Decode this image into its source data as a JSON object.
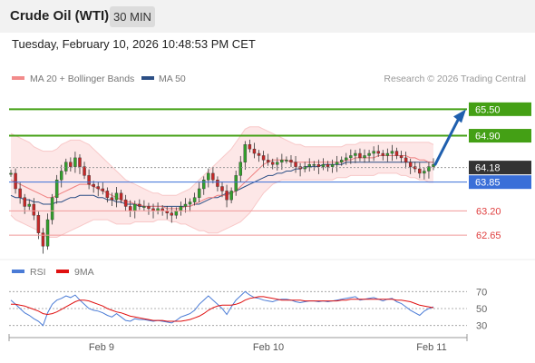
{
  "header": {
    "title": "Crude Oil (WTI)",
    "timeframe": "30 MIN"
  },
  "datetime": "Tuesday, February 10, 2026 10:48:53 PM CET",
  "colors": {
    "resistance": "#44a015",
    "pivot": "#3a6fd8",
    "support": "#e04040",
    "current": "#333333",
    "arrow": "#1f5fae",
    "ma20": "#f08080",
    "ma50": "#2c4f85",
    "rsi": "#4a7bd6",
    "rsi_ma": "#e01010"
  },
  "legend": {
    "ma20": "MA 20 + Bollinger Bands",
    "ma50": "MA 50",
    "copyright": "Research © 2026 Trading Central"
  },
  "rsi_legend": {
    "rsi": "RSI",
    "ma": "9MA"
  },
  "chart_data": {
    "type": "candlestick",
    "price_ylim": [
      62.2,
      66.0
    ],
    "levels": [
      {
        "value": 65.5,
        "label": "65.50",
        "kind": "resistance"
      },
      {
        "value": 64.9,
        "label": "64.90",
        "kind": "resistance"
      },
      {
        "value": 64.18,
        "label": "64.18",
        "kind": "current"
      },
      {
        "value": 63.85,
        "label": "63.85",
        "kind": "pivot"
      },
      {
        "value": 63.2,
        "label": "63.20",
        "kind": "support"
      },
      {
        "value": 62.65,
        "label": "62.65",
        "kind": "support"
      }
    ],
    "x_ticks": [
      "Feb 9",
      "Feb 10",
      "Feb 11"
    ],
    "close": [
      64.05,
      63.7,
      63.5,
      63.3,
      63.35,
      63.1,
      62.7,
      62.4,
      63.0,
      63.5,
      63.9,
      64.1,
      64.3,
      64.2,
      64.4,
      64.2,
      64.0,
      63.8,
      63.75,
      63.7,
      63.65,
      63.5,
      63.45,
      63.6,
      63.45,
      63.3,
      63.2,
      63.35,
      63.3,
      63.3,
      63.25,
      63.2,
      63.25,
      63.2,
      63.15,
      63.1,
      63.2,
      63.3,
      63.35,
      63.4,
      63.5,
      63.7,
      63.9,
      64.05,
      63.9,
      63.75,
      63.65,
      63.45,
      63.65,
      64.0,
      64.3,
      64.7,
      64.6,
      64.5,
      64.45,
      64.35,
      64.3,
      64.25,
      64.3,
      64.35,
      64.35,
      64.3,
      64.2,
      64.15,
      64.2,
      64.25,
      64.25,
      64.2,
      64.25,
      64.2,
      64.25,
      64.3,
      64.35,
      64.4,
      64.45,
      64.5,
      64.4,
      64.45,
      64.5,
      64.55,
      64.5,
      64.45,
      64.5,
      64.55,
      64.45,
      64.4,
      64.3,
      64.2,
      64.15,
      64.05,
      64.1,
      64.2,
      64.25
    ],
    "ma20": [
      63.9,
      63.85,
      63.8,
      63.75,
      63.7,
      63.65,
      63.6,
      63.55,
      63.5,
      63.5,
      63.55,
      63.6,
      63.65,
      63.7,
      63.75,
      63.8,
      63.8,
      63.8,
      63.75,
      63.7,
      63.65,
      63.6,
      63.55,
      63.5,
      63.45,
      63.4,
      63.4,
      63.35,
      63.35,
      63.3,
      63.3,
      63.3,
      63.3,
      63.3,
      63.25,
      63.25,
      63.25,
      63.25,
      63.3,
      63.3,
      63.35,
      63.4,
      63.45,
      63.5,
      63.5,
      63.55,
      63.55,
      63.55,
      63.6,
      63.65,
      63.75,
      63.85,
      63.95,
      64.05,
      64.15,
      64.25,
      64.3,
      64.35,
      64.35,
      64.35,
      64.35,
      64.3,
      64.3,
      64.3,
      64.3,
      64.3,
      64.3,
      64.3,
      64.3,
      64.3,
      64.3,
      64.3,
      64.3,
      64.35,
      64.35,
      64.4,
      64.4,
      64.4,
      64.4,
      64.4,
      64.45,
      64.45,
      64.45,
      64.45,
      64.45,
      64.45,
      64.45,
      64.4,
      64.4,
      64.35,
      64.35,
      64.3,
      64.3
    ],
    "bb_upper": [
      64.95,
      64.9,
      64.85,
      64.8,
      64.75,
      64.65,
      64.6,
      64.55,
      64.55,
      64.55,
      64.6,
      64.7,
      64.75,
      64.8,
      64.8,
      64.8,
      64.75,
      64.7,
      64.6,
      64.5,
      64.4,
      64.3,
      64.2,
      64.1,
      64.0,
      63.9,
      63.85,
      63.8,
      63.75,
      63.7,
      63.65,
      63.6,
      63.6,
      63.55,
      63.55,
      63.55,
      63.55,
      63.6,
      63.65,
      63.7,
      63.8,
      63.9,
      64.0,
      64.1,
      64.2,
      64.3,
      64.4,
      64.5,
      64.6,
      64.75,
      64.9,
      65.05,
      65.1,
      65.1,
      65.1,
      65.05,
      65.0,
      64.95,
      64.9,
      64.85,
      64.8,
      64.75,
      64.7,
      64.7,
      64.65,
      64.65,
      64.65,
      64.65,
      64.65,
      64.65,
      64.65,
      64.65,
      64.65,
      64.7,
      64.7,
      64.7,
      64.75,
      64.75,
      64.75,
      64.75,
      64.75,
      64.75,
      64.75,
      64.75,
      64.75,
      64.75,
      64.75,
      64.75,
      64.75,
      64.75,
      64.75,
      64.75,
      64.7
    ],
    "bb_lower": [
      63.1,
      63.0,
      62.95,
      62.9,
      62.85,
      62.8,
      62.75,
      62.65,
      62.6,
      62.6,
      62.6,
      62.65,
      62.7,
      62.75,
      62.8,
      62.85,
      62.9,
      62.95,
      63.0,
      63.0,
      63.0,
      63.0,
      62.95,
      62.9,
      62.9,
      62.9,
      62.9,
      62.95,
      62.95,
      62.95,
      62.95,
      62.95,
      63.0,
      63.0,
      63.0,
      62.95,
      62.95,
      62.9,
      62.9,
      62.85,
      62.8,
      62.75,
      62.75,
      62.7,
      62.7,
      62.7,
      62.75,
      62.8,
      62.85,
      62.9,
      62.95,
      63.05,
      63.15,
      63.3,
      63.45,
      63.6,
      63.7,
      63.8,
      63.85,
      63.9,
      63.9,
      63.9,
      63.9,
      63.9,
      63.9,
      63.9,
      63.9,
      63.9,
      63.9,
      63.9,
      63.9,
      63.95,
      63.95,
      63.95,
      64.0,
      64.0,
      64.0,
      64.0,
      64.0,
      64.0,
      64.05,
      64.05,
      64.05,
      64.05,
      64.05,
      64.0,
      64.0,
      63.95,
      63.95,
      63.9,
      63.9,
      63.85,
      63.85
    ],
    "ma50": [
      63.55,
      63.5,
      63.5,
      63.45,
      63.45,
      63.4,
      63.4,
      63.35,
      63.35,
      63.35,
      63.4,
      63.4,
      63.45,
      63.5,
      63.5,
      63.55,
      63.55,
      63.55,
      63.55,
      63.5,
      63.5,
      63.45,
      63.45,
      63.4,
      63.4,
      63.35,
      63.35,
      63.35,
      63.3,
      63.3,
      63.3,
      63.3,
      63.3,
      63.3,
      63.3,
      63.3,
      63.3,
      63.3,
      63.3,
      63.3,
      63.35,
      63.35,
      63.4,
      63.45,
      63.5,
      63.5,
      63.55,
      63.6,
      63.6,
      63.65,
      63.7,
      63.75,
      63.8,
      63.85,
      63.9,
      63.95,
      64.0,
      64.0,
      64.05,
      64.05,
      64.1,
      64.1,
      64.15,
      64.15,
      64.2,
      64.2,
      64.2,
      64.2,
      64.25,
      64.25,
      64.25,
      64.25,
      64.25,
      64.3,
      64.3,
      64.3,
      64.3,
      64.3,
      64.3,
      64.3,
      64.3,
      64.3,
      64.3,
      64.3,
      64.3,
      64.3,
      64.3,
      64.3,
      64.3,
      64.3,
      64.3,
      64.3,
      64.3
    ],
    "rsi_ticks": [
      70,
      50,
      30
    ],
    "rsi_ylim": [
      20,
      80
    ],
    "rsi": [
      60,
      55,
      50,
      45,
      42,
      38,
      35,
      30,
      45,
      55,
      60,
      62,
      65,
      63,
      66,
      60,
      55,
      50,
      48,
      47,
      45,
      42,
      40,
      44,
      40,
      36,
      35,
      38,
      37,
      37,
      36,
      35,
      36,
      35,
      34,
      33,
      36,
      40,
      42,
      44,
      48,
      55,
      60,
      65,
      60,
      55,
      50,
      43,
      52,
      60,
      65,
      70,
      66,
      63,
      62,
      60,
      59,
      58,
      60,
      61,
      61,
      60,
      58,
      57,
      58,
      59,
      59,
      58,
      59,
      58,
      59,
      60,
      61,
      62,
      63,
      64,
      60,
      61,
      62,
      63,
      61,
      59,
      61,
      62,
      58,
      56,
      52,
      48,
      45,
      42,
      47,
      50,
      52
    ],
    "rsi_ma": [
      55,
      55,
      54,
      53,
      51,
      49,
      47,
      44,
      43,
      44,
      46,
      49,
      52,
      55,
      58,
      60,
      60,
      59,
      57,
      55,
      53,
      50,
      48,
      46,
      45,
      43,
      41,
      40,
      39,
      38,
      37,
      36,
      36,
      36,
      35,
      35,
      35,
      35,
      36,
      37,
      39,
      41,
      44,
      48,
      51,
      53,
      54,
      54,
      54,
      55,
      57,
      60,
      62,
      63,
      64,
      64,
      63,
      62,
      61,
      60,
      60,
      60,
      60,
      60,
      59,
      59,
      59,
      59,
      59,
      59,
      59,
      59,
      60,
      60,
      61,
      61,
      61,
      61,
      61,
      61,
      61,
      61,
      61,
      61,
      60,
      60,
      59,
      58,
      56,
      54,
      53,
      52,
      51
    ],
    "forecast_arrow_to": 65.5
  }
}
